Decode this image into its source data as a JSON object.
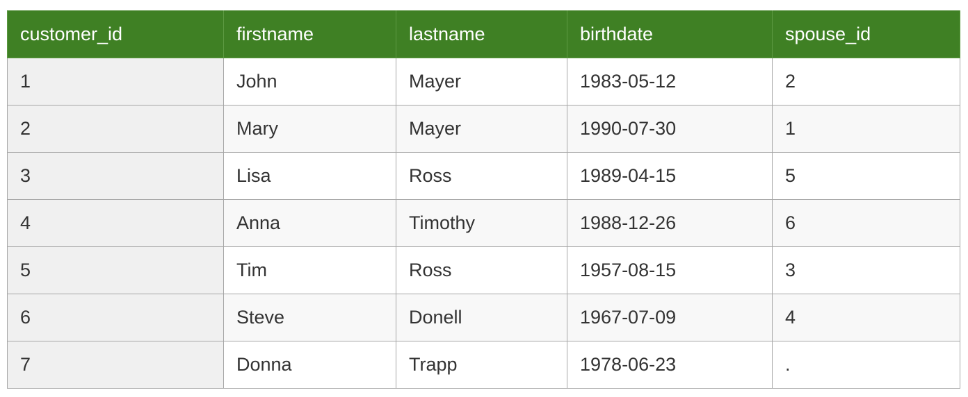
{
  "table": {
    "columns": [
      "customer_id",
      "firstname",
      "lastname",
      "birthdate",
      "spouse_id"
    ],
    "rows": [
      [
        "1",
        "John",
        "Mayer",
        "1983-05-12",
        "2"
      ],
      [
        "2",
        "Mary",
        "Mayer",
        "1990-07-30",
        "1"
      ],
      [
        "3",
        "Lisa",
        "Ross",
        "1989-04-15",
        "5"
      ],
      [
        "4",
        "Anna",
        "Timothy",
        "1988-12-26",
        "6"
      ],
      [
        "5",
        "Tim",
        "Ross",
        "1957-08-15",
        "3"
      ],
      [
        "6",
        "Steve",
        "Donell",
        "1967-07-09",
        "4"
      ],
      [
        "7",
        "Donna",
        "Trapp",
        "1978-06-23",
        "."
      ]
    ]
  },
  "colors": {
    "header_bg": "#3f8024",
    "header_text": "#ffffff",
    "first_col_bg": "#f0f0f0",
    "row_alt_bg": "#f8f8f8",
    "border": "#a6a6a6"
  }
}
